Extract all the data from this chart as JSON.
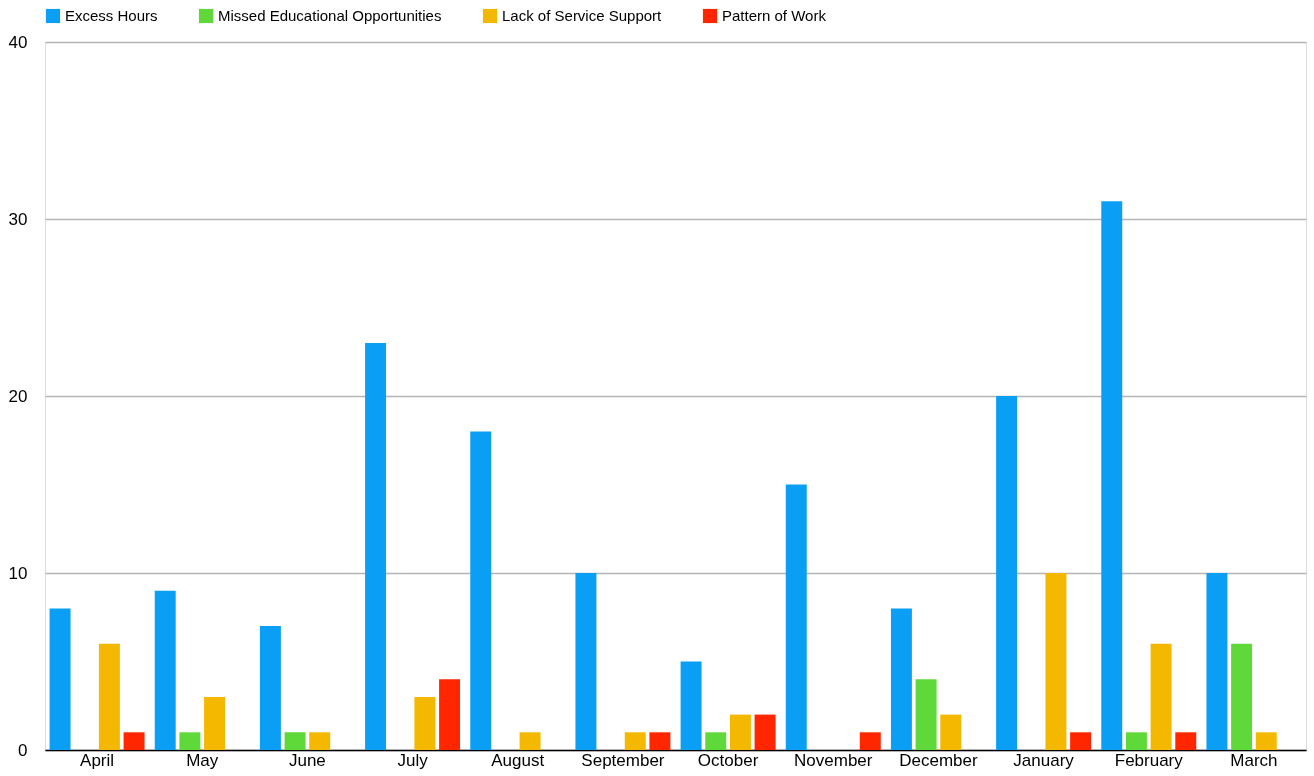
{
  "chart_data": {
    "type": "bar",
    "categories": [
      "April",
      "May",
      "June",
      "July",
      "August",
      "September",
      "October",
      "November",
      "December",
      "January",
      "February",
      "March"
    ],
    "series": [
      {
        "name": "Excess Hours",
        "color": "#0a9ff5",
        "values": [
          8,
          9,
          7,
          23,
          18,
          10,
          5,
          15,
          8,
          20,
          31,
          10
        ]
      },
      {
        "name": "Missed Educational Opportunities",
        "color": "#5fd93a",
        "values": [
          0,
          1,
          1,
          0,
          0,
          0,
          1,
          0,
          4,
          0,
          1,
          6
        ]
      },
      {
        "name": "Lack of Service Support",
        "color": "#f5b800",
        "values": [
          6,
          3,
          1,
          3,
          1,
          1,
          2,
          0,
          2,
          10,
          6,
          1
        ]
      },
      {
        "name": "Pattern of Work",
        "color": "#ff2600",
        "values": [
          1,
          0,
          0,
          4,
          0,
          1,
          2,
          1,
          0,
          1,
          1,
          0
        ]
      }
    ],
    "ylim": [
      0,
      40
    ],
    "yticks": [
      0,
      10,
      20,
      30,
      40
    ],
    "grid": "y",
    "legend": "top"
  }
}
